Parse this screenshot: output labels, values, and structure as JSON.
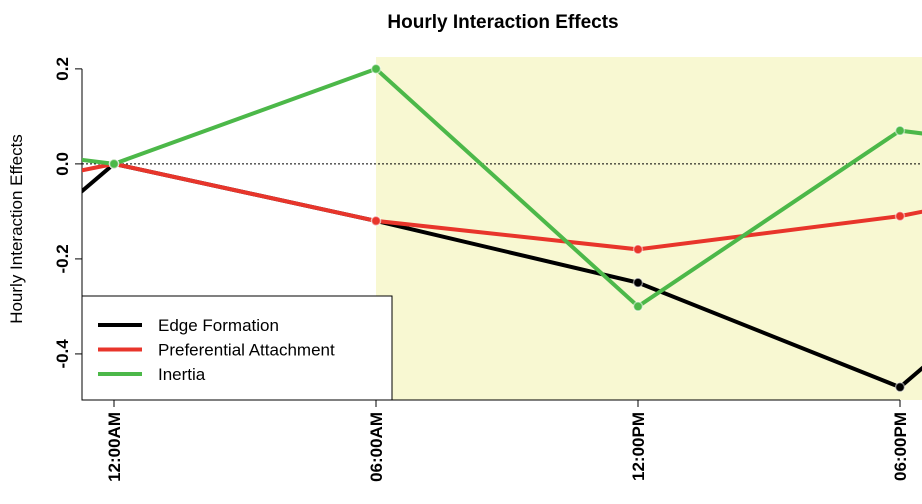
{
  "chart_data": {
    "type": "line",
    "title": "Hourly Interaction Effects",
    "y_label": "Hourly Interaction Effects",
    "categories": [
      "12:00AM",
      "06:00AM",
      "12:00PM",
      "06:00PM"
    ],
    "series": [
      {
        "name": "Edge Formation",
        "color": "#000000",
        "values": [
          0,
          -0.12,
          -0.25,
          -0.47
        ]
      },
      {
        "name": "Preferential Attachment",
        "color": "#e8352b",
        "values": [
          0,
          -0.12,
          -0.18,
          -0.11
        ]
      },
      {
        "name": "Inertia",
        "color": "#4cb849",
        "values": [
          0,
          0.2,
          -0.3,
          0.07
        ]
      }
    ],
    "ylim": [
      -0.497,
      0.225
    ],
    "yticks": [
      -0.4,
      -0.2,
      {
        "value": 0,
        "label": "0.0"
      },
      0.2
    ],
    "reference_line": 0,
    "legend": "bottom-left"
  }
}
